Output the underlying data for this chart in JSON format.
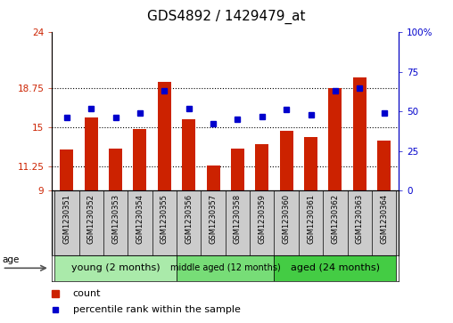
{
  "title": "GDS4892 / 1429479_at",
  "samples": [
    "GSM1230351",
    "GSM1230352",
    "GSM1230353",
    "GSM1230354",
    "GSM1230355",
    "GSM1230356",
    "GSM1230357",
    "GSM1230358",
    "GSM1230359",
    "GSM1230360",
    "GSM1230361",
    "GSM1230362",
    "GSM1230363",
    "GSM1230364"
  ],
  "counts": [
    12.9,
    15.9,
    13.0,
    14.8,
    19.3,
    15.8,
    11.4,
    13.0,
    13.4,
    14.7,
    14.1,
    18.7,
    19.7,
    13.7
  ],
  "percentiles": [
    46,
    52,
    46,
    49,
    63,
    52,
    42,
    45,
    47,
    51,
    48,
    63,
    65,
    49
  ],
  "ymin": 9,
  "ymax": 24,
  "yticks": [
    9,
    11.25,
    15,
    18.75,
    24
  ],
  "ytick_labels": [
    "9",
    "11.25",
    "15",
    "18.75",
    "24"
  ],
  "right_yticks": [
    0,
    25,
    50,
    75,
    100
  ],
  "right_ytick_labels": [
    "0",
    "25",
    "50",
    "75",
    "100%"
  ],
  "bar_color": "#cc2200",
  "percentile_color": "#0000cc",
  "percentile_markersize": 4,
  "groups": [
    {
      "label": "young (2 months)",
      "start": 0,
      "end": 5,
      "color": "#aaeaaa"
    },
    {
      "label": "middle aged (12 months)",
      "start": 5,
      "end": 9,
      "color": "#77dd77"
    },
    {
      "label": "aged (24 months)",
      "start": 9,
      "end": 14,
      "color": "#44cc44"
    }
  ],
  "age_label": "age",
  "legend_count_label": "count",
  "legend_percentile_label": "percentile rank within the sample",
  "title_fontsize": 11,
  "bar_color_left": "#cc2200",
  "bar_color_right": "#0000cc",
  "bar_width": 0.55,
  "tick_area_color": "#cccccc"
}
